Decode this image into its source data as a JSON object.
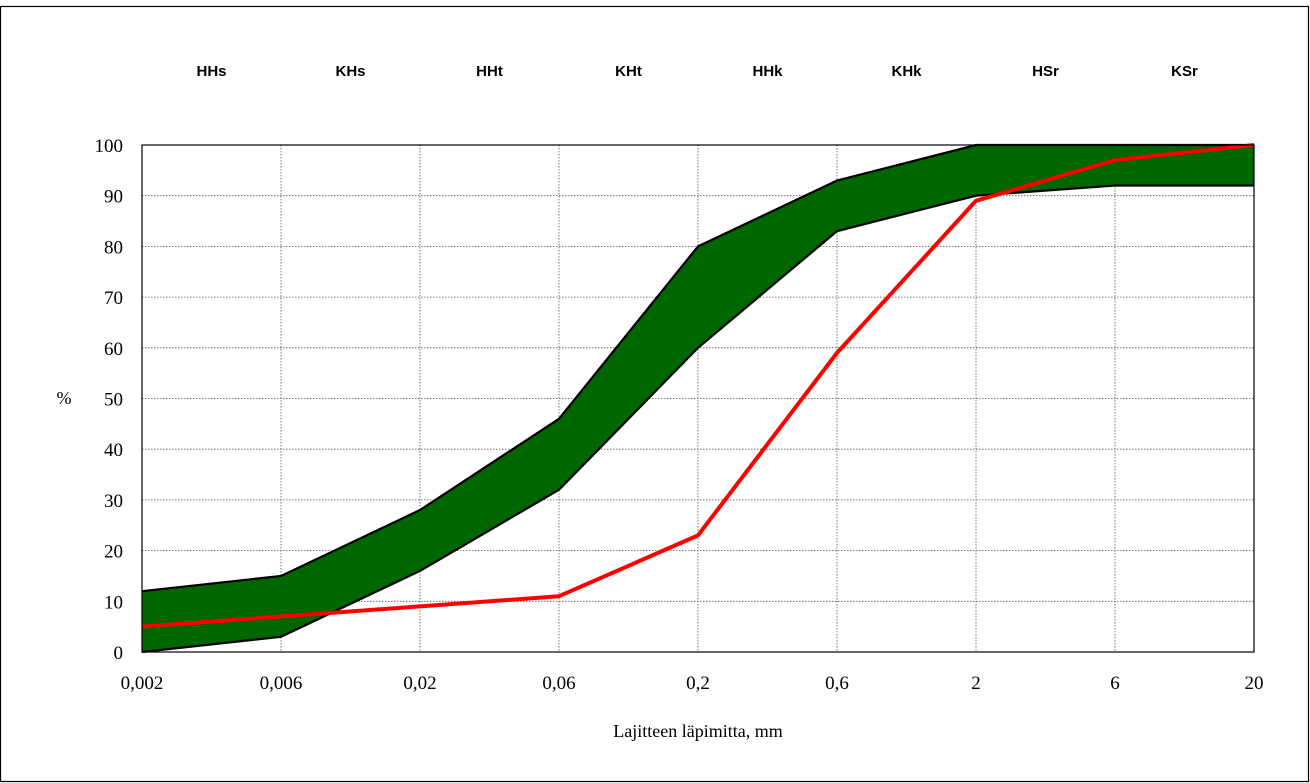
{
  "chart_data": {
    "type": "area",
    "title": "",
    "xlabel": "Lajitteen läpimitta, mm",
    "ylabel": "%",
    "x_tick_labels": [
      "0,002",
      "0,006",
      "0,02",
      "0,06",
      "0,2",
      "0,6",
      "2",
      "6",
      "20"
    ],
    "x_values": [
      0.002,
      0.006,
      0.02,
      0.06,
      0.2,
      0.6,
      2,
      6,
      20
    ],
    "y_ticks": [
      0,
      10,
      20,
      30,
      40,
      50,
      60,
      70,
      80,
      90,
      100
    ],
    "ylim": [
      0,
      100
    ],
    "grid": true,
    "band_labels": [
      "HHs",
      "KHs",
      "HHt",
      "KHt",
      "HHk",
      "KHk",
      "HSr",
      "KSr"
    ],
    "band_upper": [
      12,
      15,
      28,
      46,
      80,
      93,
      100,
      100,
      100
    ],
    "band_lower": [
      0,
      3,
      16,
      32,
      60,
      83,
      90,
      92,
      92
    ],
    "series": [
      {
        "values": [
          5,
          7,
          9,
          11,
          23,
          59,
          89,
          97,
          100
        ],
        "color": "#ff0000"
      }
    ],
    "colors": {
      "band_fill": "#006600",
      "band_edge": "#000000",
      "line": "#ff0000"
    }
  }
}
